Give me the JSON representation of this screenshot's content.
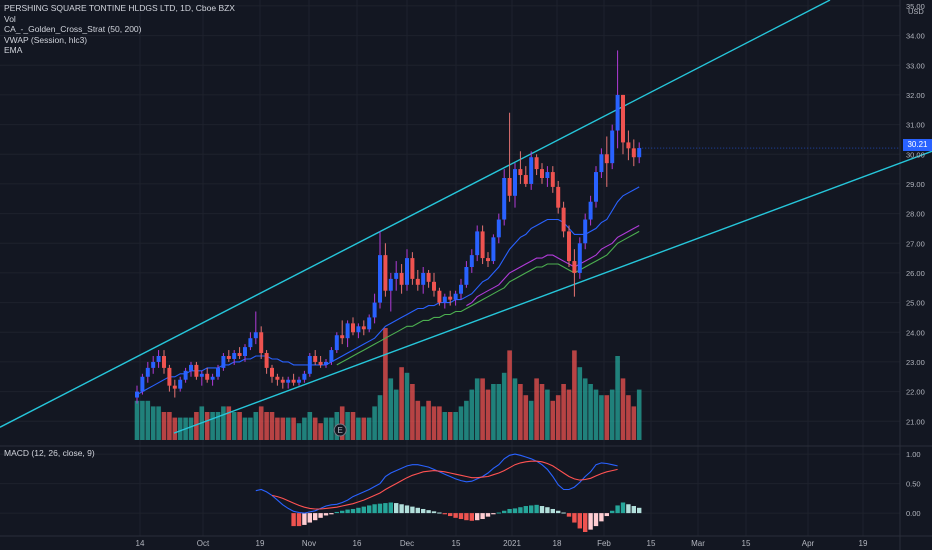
{
  "legend": {
    "symbol": "PERSHING SQUARE TONTINE HLDGS LTD, 1D, Cboe BZX",
    "vol": "Vol",
    "strategy": "CA_-_Golden_Cross_Strat (50, 200)",
    "vwap": "VWAP (Session, hlc3)",
    "ema": "EMA",
    "macd": "MACD (12, 26, close, 9)"
  },
  "currency": "USD",
  "last_price_label": "30.21",
  "event_marker": "E",
  "colors": {
    "background": "#131722",
    "grid": "#1e222d",
    "text": "#b2b5be",
    "up": "#2962ff",
    "down": "#ef5350",
    "vol_up": "#26a69a",
    "vol_down": "#ef5350",
    "trendline": "#26c6da",
    "ema_blue": "#2962ff",
    "ma_green": "#4caf50",
    "ma_purple": "#b03bd8",
    "macd_line": "#2962ff",
    "signal_line": "#ff5252"
  },
  "chart_data": [
    {
      "type": "candlestick",
      "title": "PERSHING SQUARE TONTINE HLDGS LTD, 1D, Cboe BZX",
      "x_tick_labels": [
        "14",
        "Oct",
        "19",
        "Nov",
        "16",
        "Dec",
        "15",
        "2021",
        "18",
        "Feb",
        "15",
        "Mar",
        "15",
        "Apr",
        "19"
      ],
      "y_tick_labels": [
        "21.00",
        "22.00",
        "23.00",
        "24.00",
        "25.00",
        "26.00",
        "27.00",
        "28.00",
        "29.00",
        "30.00",
        "31.00",
        "32.00",
        "33.00",
        "34.00",
        "35.00"
      ],
      "ylim": [
        20.2,
        35.2
      ],
      "last_price": 30.21,
      "ohlc": [
        [
          21.8,
          22.2,
          21.6,
          22.0
        ],
        [
          22.0,
          22.6,
          21.9,
          22.5
        ],
        [
          22.5,
          23.0,
          22.3,
          22.8
        ],
        [
          22.8,
          23.2,
          22.6,
          23.0
        ],
        [
          23.0,
          23.4,
          22.8,
          23.2
        ],
        [
          23.2,
          23.4,
          22.6,
          22.8
        ],
        [
          22.8,
          22.9,
          22.0,
          22.2
        ],
        [
          22.2,
          22.4,
          21.8,
          22.1
        ],
        [
          22.1,
          22.5,
          22.0,
          22.4
        ],
        [
          22.4,
          22.8,
          22.3,
          22.7
        ],
        [
          22.7,
          23.0,
          22.5,
          22.9
        ],
        [
          22.9,
          23.0,
          22.4,
          22.5
        ],
        [
          22.5,
          22.7,
          22.2,
          22.6
        ],
        [
          22.6,
          22.8,
          22.3,
          22.4
        ],
        [
          22.4,
          22.6,
          22.2,
          22.5
        ],
        [
          22.5,
          22.9,
          22.4,
          22.8
        ],
        [
          22.8,
          23.3,
          22.7,
          23.2
        ],
        [
          23.2,
          23.4,
          23.0,
          23.1
        ],
        [
          23.1,
          23.4,
          22.9,
          23.3
        ],
        [
          23.3,
          23.5,
          23.1,
          23.2
        ],
        [
          23.2,
          23.6,
          23.0,
          23.5
        ],
        [
          23.5,
          24.0,
          23.4,
          23.8
        ],
        [
          23.8,
          24.7,
          23.6,
          24.0
        ],
        [
          24.0,
          24.2,
          23.1,
          23.3
        ],
        [
          23.3,
          23.4,
          22.6,
          22.8
        ],
        [
          22.8,
          22.9,
          22.3,
          22.5
        ],
        [
          22.5,
          22.6,
          22.2,
          22.4
        ],
        [
          22.4,
          22.5,
          22.1,
          22.3
        ],
        [
          22.3,
          22.5,
          22.1,
          22.4
        ],
        [
          22.4,
          22.6,
          22.2,
          22.3
        ],
        [
          22.3,
          22.5,
          22.2,
          22.4
        ],
        [
          22.4,
          22.7,
          22.3,
          22.6
        ],
        [
          22.6,
          23.3,
          22.5,
          23.2
        ],
        [
          23.2,
          23.4,
          22.9,
          23.0
        ],
        [
          23.0,
          23.2,
          22.8,
          22.9
        ],
        [
          22.9,
          23.1,
          22.8,
          23.0
        ],
        [
          23.0,
          23.5,
          22.9,
          23.4
        ],
        [
          23.4,
          24.0,
          23.3,
          23.9
        ],
        [
          23.9,
          24.4,
          23.6,
          23.8
        ],
        [
          23.8,
          24.4,
          23.5,
          24.3
        ],
        [
          24.3,
          24.5,
          23.9,
          24.0
        ],
        [
          24.0,
          24.3,
          23.8,
          24.2
        ],
        [
          24.2,
          24.4,
          23.9,
          24.1
        ],
        [
          24.1,
          24.6,
          24.0,
          24.5
        ],
        [
          24.5,
          25.3,
          24.3,
          25.0
        ],
        [
          25.0,
          27.4,
          24.8,
          26.6
        ],
        [
          26.6,
          27.0,
          25.2,
          25.4
        ],
        [
          25.4,
          26.0,
          24.7,
          25.8
        ],
        [
          25.8,
          26.4,
          25.4,
          26.0
        ],
        [
          26.0,
          26.3,
          25.3,
          25.6
        ],
        [
          25.6,
          26.8,
          25.4,
          26.5
        ],
        [
          26.5,
          26.7,
          25.6,
          25.8
        ],
        [
          25.8,
          26.1,
          25.4,
          25.6
        ],
        [
          25.6,
          26.2,
          25.3,
          26.0
        ],
        [
          26.0,
          26.1,
          25.5,
          25.7
        ],
        [
          25.7,
          26.0,
          25.2,
          25.4
        ],
        [
          25.4,
          25.5,
          24.9,
          25.0
        ],
        [
          25.0,
          25.3,
          24.8,
          25.2
        ],
        [
          25.2,
          25.4,
          24.9,
          25.1
        ],
        [
          25.1,
          25.4,
          24.9,
          25.3
        ],
        [
          25.3,
          25.8,
          25.1,
          25.6
        ],
        [
          25.6,
          26.4,
          25.5,
          26.2
        ],
        [
          26.2,
          26.8,
          26.0,
          26.6
        ],
        [
          26.6,
          27.6,
          26.4,
          27.4
        ],
        [
          27.4,
          27.6,
          26.3,
          26.5
        ],
        [
          26.5,
          26.7,
          26.2,
          26.4
        ],
        [
          26.4,
          27.3,
          26.3,
          27.2
        ],
        [
          27.2,
          28.0,
          27.0,
          27.8
        ],
        [
          27.8,
          29.5,
          27.6,
          29.2
        ],
        [
          29.2,
          31.4,
          28.4,
          28.6
        ],
        [
          28.6,
          29.7,
          28.2,
          29.5
        ],
        [
          29.5,
          30.1,
          29.0,
          29.3
        ],
        [
          29.3,
          29.6,
          28.9,
          29.0
        ],
        [
          29.0,
          30.1,
          28.8,
          29.9
        ],
        [
          29.9,
          30.0,
          29.3,
          29.5
        ],
        [
          29.5,
          29.7,
          29.0,
          29.2
        ],
        [
          29.2,
          29.6,
          28.9,
          29.4
        ],
        [
          29.4,
          29.6,
          28.7,
          28.9
        ],
        [
          28.9,
          29.1,
          28.0,
          28.2
        ],
        [
          28.2,
          28.4,
          27.2,
          27.4
        ],
        [
          27.4,
          27.6,
          26.2,
          26.4
        ],
        [
          26.4,
          26.8,
          25.2,
          26.0
        ],
        [
          26.0,
          27.2,
          25.8,
          27.0
        ],
        [
          27.0,
          28.0,
          26.8,
          27.8
        ],
        [
          27.8,
          28.6,
          27.6,
          28.4
        ],
        [
          28.4,
          29.6,
          28.2,
          29.4
        ],
        [
          29.4,
          30.2,
          29.2,
          30.0
        ],
        [
          30.0,
          30.6,
          28.9,
          29.7
        ],
        [
          29.7,
          31.0,
          29.5,
          30.8
        ],
        [
          30.8,
          33.5,
          30.2,
          32.0
        ],
        [
          32.0,
          32.0,
          30.0,
          30.4
        ],
        [
          30.4,
          30.8,
          29.8,
          30.2
        ],
        [
          30.2,
          30.5,
          29.6,
          29.9
        ],
        [
          29.9,
          30.4,
          29.7,
          30.21
        ]
      ],
      "volume": [
        7,
        7,
        7,
        6,
        6,
        5,
        5,
        4,
        4,
        4,
        4,
        5,
        6,
        5,
        5,
        5,
        6,
        6,
        5,
        5,
        4,
        4,
        5,
        6,
        5,
        5,
        4,
        4,
        4,
        4,
        3,
        4,
        5,
        4,
        3,
        4,
        4,
        5,
        6,
        5,
        5,
        4,
        4,
        4,
        6,
        8,
        20,
        11,
        9,
        13,
        12,
        10,
        7,
        6,
        7,
        6,
        6,
        5,
        5,
        5,
        6,
        7,
        9,
        11,
        11,
        9,
        10,
        10,
        12,
        16,
        11,
        10,
        8,
        7,
        11,
        10,
        9,
        7,
        8,
        10,
        9,
        16,
        13,
        11,
        10,
        9,
        8,
        8,
        9,
        15,
        11,
        8,
        6,
        9
      ],
      "volume_up": [
        true,
        true,
        true,
        true,
        true,
        false,
        false,
        false,
        true,
        true,
        true,
        false,
        true,
        false,
        true,
        true,
        true,
        false,
        true,
        false,
        true,
        true,
        true,
        false,
        false,
        false,
        false,
        false,
        true,
        false,
        true,
        true,
        true,
        false,
        false,
        true,
        true,
        true,
        false,
        true,
        false,
        true,
        false,
        true,
        true,
        true,
        false,
        true,
        true,
        false,
        true,
        false,
        false,
        true,
        false,
        false,
        false,
        true,
        false,
        true,
        true,
        true,
        true,
        true,
        false,
        false,
        true,
        true,
        true,
        false,
        true,
        false,
        false,
        true,
        false,
        false,
        true,
        false,
        false,
        false,
        false,
        false,
        true,
        true,
        true,
        true,
        true,
        false,
        true,
        true,
        false,
        false,
        false,
        true
      ],
      "event_marker_index": 38,
      "trendline_upper": {
        "x1": 0,
        "y1": 20.8,
        "x2": 830,
        "y2": 35.2
      },
      "trendline_lower": {
        "x1": 174,
        "y1": 20.6,
        "x2": 932,
        "y2": 30.1
      },
      "ema_blue": [
        21.9,
        22.0,
        22.1,
        22.2,
        22.3,
        22.4,
        22.5,
        22.5,
        22.6,
        22.6,
        22.7,
        22.7,
        22.7,
        22.8,
        22.8,
        22.8,
        22.9,
        22.9,
        23.0,
        23.0,
        23.1,
        23.1,
        23.2,
        23.2,
        23.2,
        23.1,
        23.1,
        23.0,
        23.0,
        22.9,
        22.9,
        22.9,
        22.9,
        22.9,
        22.9,
        22.9,
        23.0,
        23.1,
        23.2,
        23.3,
        23.4,
        23.5,
        23.6,
        23.7,
        23.8,
        24.0,
        24.2,
        24.3,
        24.4,
        24.5,
        24.6,
        24.7,
        24.8,
        24.8,
        24.9,
        24.9,
        25.0,
        25.0,
        25.0,
        25.1,
        25.1,
        25.2,
        25.3,
        25.5,
        25.7,
        25.8,
        26.0,
        26.2,
        26.5,
        26.8,
        27.0,
        27.2,
        27.3,
        27.5,
        27.6,
        27.7,
        27.8,
        27.8,
        27.8,
        27.7,
        27.5,
        27.3,
        27.3,
        27.3,
        27.4,
        27.5,
        27.7,
        27.8,
        28.1,
        28.4,
        28.6,
        28.7,
        28.8,
        28.9
      ],
      "ma_green": [
        null,
        null,
        null,
        null,
        null,
        null,
        null,
        null,
        null,
        null,
        null,
        null,
        null,
        null,
        null,
        null,
        null,
        null,
        null,
        null,
        null,
        null,
        null,
        null,
        null,
        null,
        null,
        null,
        null,
        null,
        null,
        null,
        null,
        null,
        null,
        null,
        null,
        22.9,
        23.0,
        23.1,
        23.2,
        23.3,
        23.4,
        23.5,
        23.6,
        23.7,
        23.8,
        23.9,
        24.0,
        24.1,
        24.2,
        24.2,
        24.3,
        24.4,
        24.4,
        24.5,
        24.5,
        24.6,
        24.6,
        24.7,
        24.7,
        24.8,
        24.9,
        25.0,
        25.1,
        25.2,
        25.3,
        25.4,
        25.5,
        25.7,
        25.8,
        25.9,
        26.0,
        26.1,
        26.2,
        26.2,
        26.3,
        26.3,
        26.3,
        26.2,
        26.1,
        26.0,
        26.1,
        26.2,
        26.3,
        26.4,
        26.5,
        26.6,
        26.8,
        27.0,
        27.1,
        27.2,
        27.3,
        27.4
      ],
      "ma_purple": [
        null,
        null,
        null,
        null,
        null,
        null,
        null,
        null,
        null,
        null,
        null,
        null,
        null,
        null,
        null,
        null,
        null,
        null,
        null,
        null,
        null,
        null,
        null,
        null,
        null,
        null,
        null,
        null,
        null,
        null,
        null,
        null,
        null,
        null,
        null,
        null,
        null,
        null,
        null,
        null,
        null,
        null,
        null,
        null,
        null,
        null,
        null,
        null,
        null,
        null,
        null,
        null,
        null,
        null,
        null,
        null,
        null,
        null,
        null,
        null,
        null,
        24.9,
        25.0,
        25.2,
        25.3,
        25.4,
        25.5,
        25.6,
        25.8,
        26.0,
        26.1,
        26.2,
        26.3,
        26.4,
        26.5,
        26.5,
        26.6,
        26.6,
        26.5,
        26.4,
        26.3,
        26.2,
        26.3,
        26.4,
        26.5,
        26.6,
        26.8,
        26.9,
        27.0,
        27.2,
        27.3,
        27.4,
        27.5,
        27.6
      ]
    },
    {
      "type": "macd",
      "title": "MACD (12, 26, close, 9)",
      "y_tick_labels": [
        "0.00",
        "0.50",
        "1.00"
      ],
      "ylim": [
        -0.32,
        1.12
      ],
      "macd_start_index": 22,
      "macd": [
        0.38,
        0.4,
        0.36,
        0.3,
        0.22,
        0.14,
        0.08,
        0.03,
        0.01,
        0.0,
        0.02,
        0.04,
        0.08,
        0.12,
        0.14,
        0.15,
        0.18,
        0.22,
        0.28,
        0.32,
        0.36,
        0.4,
        0.45,
        0.5,
        0.62,
        0.68,
        0.72,
        0.76,
        0.8,
        0.82,
        0.82,
        0.8,
        0.78,
        0.74,
        0.7,
        0.66,
        0.62,
        0.58,
        0.55,
        0.53,
        0.54,
        0.58,
        0.62,
        0.68,
        0.76,
        0.82,
        0.92,
        0.98,
        1.0,
        0.98,
        0.95,
        0.92,
        0.88,
        0.82,
        0.74,
        0.62,
        0.48,
        0.4,
        0.4,
        0.44,
        0.52,
        0.62,
        0.7,
        0.82,
        0.85,
        0.84,
        0.82,
        0.8
      ],
      "signal": [
        null,
        null,
        null,
        0.3,
        0.28,
        0.25,
        0.21,
        0.17,
        0.13,
        0.1,
        0.08,
        0.07,
        0.07,
        0.08,
        0.09,
        0.1,
        0.12,
        0.14,
        0.16,
        0.19,
        0.22,
        0.26,
        0.3,
        0.34,
        0.4,
        0.45,
        0.5,
        0.55,
        0.6,
        0.64,
        0.67,
        0.7,
        0.71,
        0.72,
        0.71,
        0.7,
        0.68,
        0.66,
        0.64,
        0.62,
        0.6,
        0.6,
        0.61,
        0.62,
        0.65,
        0.68,
        0.72,
        0.77,
        0.82,
        0.85,
        0.87,
        0.88,
        0.88,
        0.87,
        0.84,
        0.8,
        0.74,
        0.68,
        0.62,
        0.58,
        0.56,
        0.57,
        0.59,
        0.63,
        0.67,
        0.7,
        0.72,
        0.74
      ],
      "histogram_start_index": 29,
      "histogram": [
        -0.22,
        -0.22,
        -0.2,
        -0.16,
        -0.12,
        -0.08,
        -0.04,
        -0.02,
        0.02,
        0.04,
        0.06,
        0.07,
        0.09,
        0.11,
        0.13,
        0.15,
        0.16,
        0.17,
        0.18,
        0.17,
        0.15,
        0.13,
        0.11,
        0.09,
        0.07,
        0.05,
        0.03,
        0.01,
        -0.02,
        -0.05,
        -0.08,
        -0.1,
        -0.12,
        -0.13,
        -0.12,
        -0.1,
        -0.06,
        -0.02,
        0.01,
        0.04,
        0.07,
        0.08,
        0.1,
        0.12,
        0.13,
        0.14,
        0.12,
        0.1,
        0.07,
        0.04,
        0.01,
        -0.06,
        -0.16,
        -0.26,
        -0.32,
        -0.28,
        -0.22,
        -0.14,
        -0.05,
        0.04,
        0.13,
        0.18,
        0.15,
        0.12,
        0.09
      ]
    }
  ]
}
